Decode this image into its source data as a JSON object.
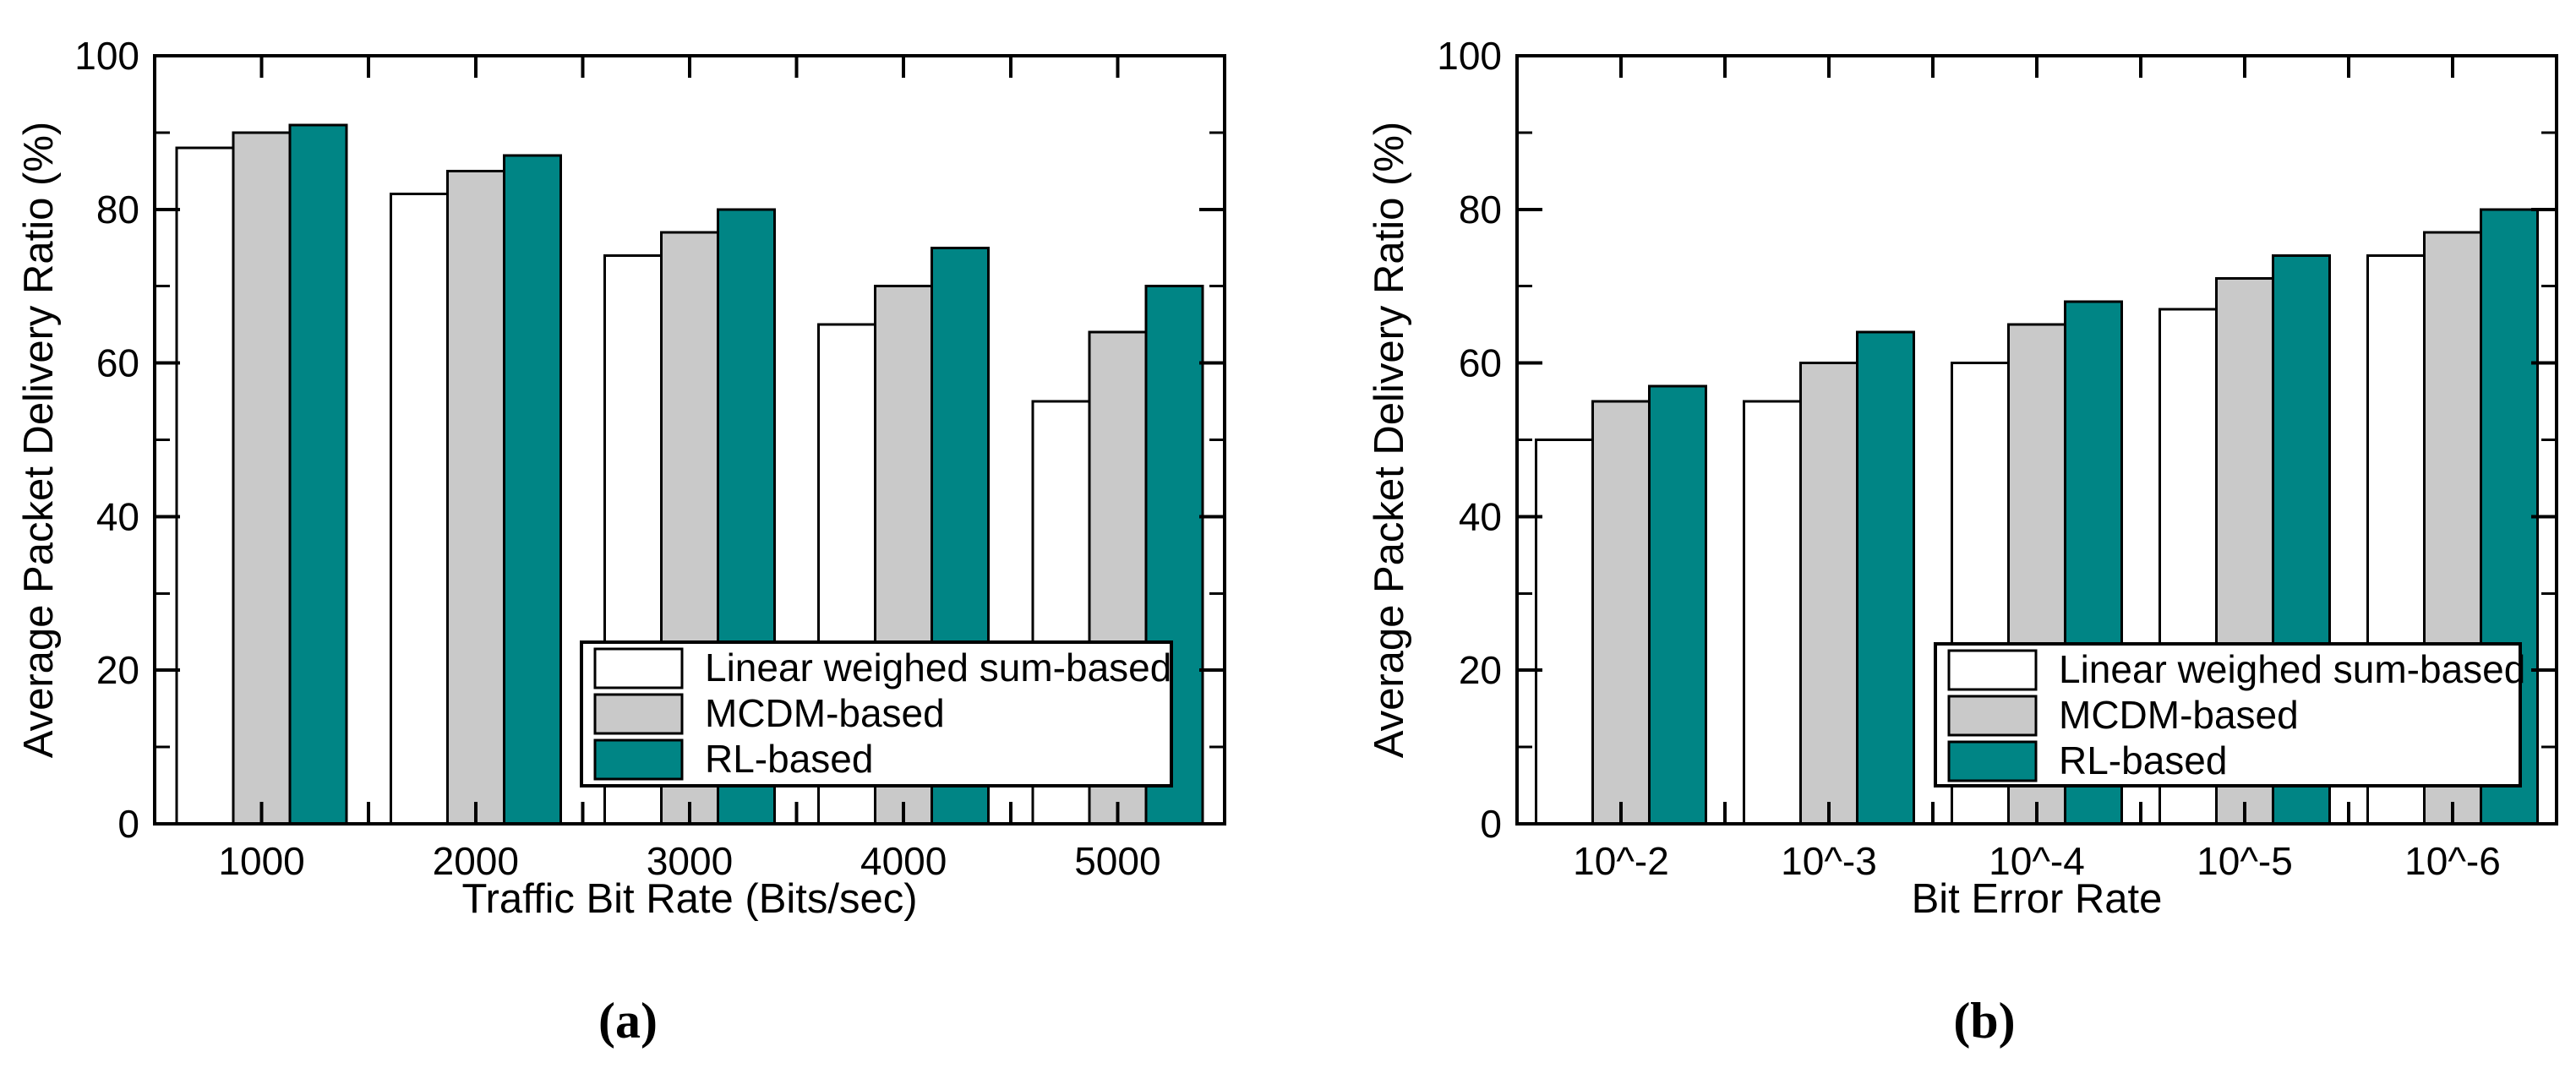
{
  "figure": {
    "background": "#FFFFFF",
    "text_color": "#000000",
    "captions": {
      "a": "(a)",
      "b": "(b)"
    }
  },
  "palette": {
    "bar_outline": "#000000",
    "frame": "#000000",
    "white_series": "#FFFFFF",
    "gray_series": "#C9C9C9",
    "teal_series": "#008585"
  },
  "chart_data": [
    {
      "id": "a",
      "type": "bar",
      "caption": "(a)",
      "title": "",
      "xlabel": "Traffic Bit Rate (Bits/sec)",
      "ylabel": "Average Packet Delivery Ratio (%)",
      "categories": [
        "1000",
        "2000",
        "3000",
        "4000",
        "5000"
      ],
      "series": [
        {
          "name": "Linear weighed sum-based",
          "color": "#FFFFFF",
          "values": [
            88,
            82,
            74,
            65,
            55
          ]
        },
        {
          "name": "MCDM-based",
          "color": "#C9C9C9",
          "values": [
            90,
            85,
            77,
            70,
            64
          ]
        },
        {
          "name": "RL-based",
          "color": "#008585",
          "values": [
            91,
            87,
            80,
            75,
            70
          ]
        }
      ],
      "ylim": [
        0,
        100
      ],
      "yticks": [
        "0",
        "20",
        "40",
        "60",
        "80",
        "100"
      ],
      "yticks_minor": [
        10,
        30,
        50,
        70,
        90
      ],
      "grid": false,
      "legend_position": "lower right"
    },
    {
      "id": "b",
      "type": "bar",
      "caption": "(b)",
      "title": "",
      "xlabel": "Bit Error Rate",
      "ylabel": "Average Packet Delivery Ratio (%)",
      "categories": [
        "10^-2",
        "10^-3",
        "10^-4",
        "10^-5",
        "10^-6"
      ],
      "series": [
        {
          "name": "Linear weighed sum-based",
          "color": "#FFFFFF",
          "values": [
            50,
            55,
            60,
            67,
            74
          ]
        },
        {
          "name": "MCDM-based",
          "color": "#C9C9C9",
          "values": [
            55,
            60,
            65,
            71,
            77
          ]
        },
        {
          "name": "RL-based",
          "color": "#008585",
          "values": [
            57,
            64,
            68,
            74,
            80
          ]
        }
      ],
      "ylim": [
        0,
        100
      ],
      "yticks": [
        "0",
        "20",
        "40",
        "60",
        "80",
        "100"
      ],
      "yticks_minor": [
        10,
        30,
        50,
        70,
        90
      ],
      "grid": false,
      "legend_position": "lower right"
    }
  ]
}
